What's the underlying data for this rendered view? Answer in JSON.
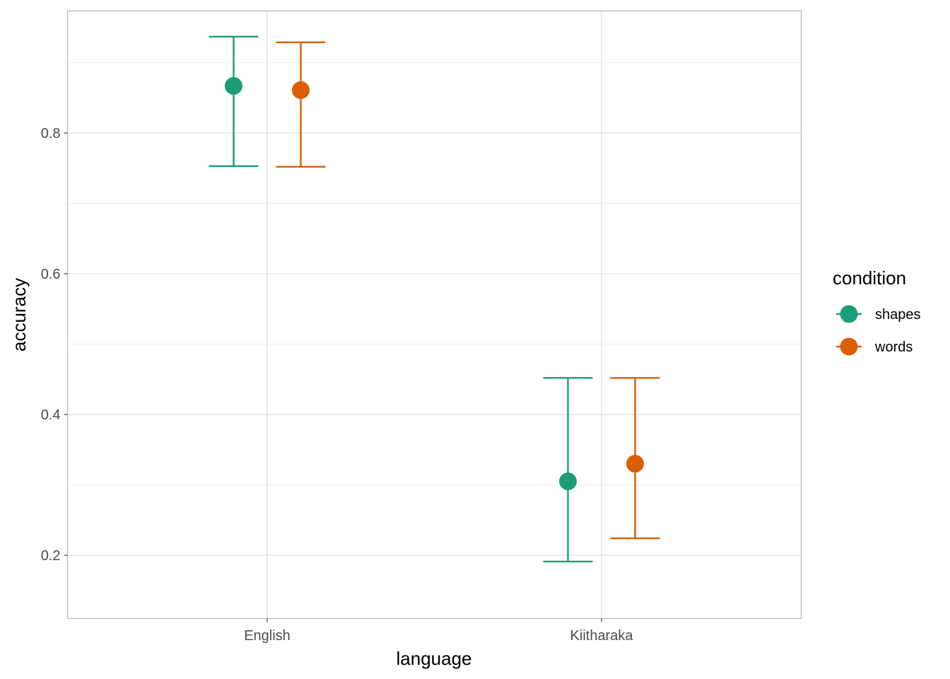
{
  "chart_data": {
    "type": "scatter",
    "xlabel": "language",
    "ylabel": "accuracy",
    "categories": [
      "English",
      "Kiitharaka"
    ],
    "yticks": [
      0.2,
      0.4,
      0.6,
      0.8
    ],
    "ytick_labels": [
      "0.2",
      "0.4",
      "0.6",
      "0.8"
    ],
    "ylim": [
      0.11,
      0.9735
    ],
    "grid": true,
    "legend": {
      "title": "condition",
      "position": "right"
    },
    "series": [
      {
        "name": "shapes",
        "color": "#1b9e77",
        "values": [
          0.867,
          0.305
        ],
        "lower": [
          0.753,
          0.191
        ],
        "upper": [
          0.937,
          0.452
        ]
      },
      {
        "name": "words",
        "color": "#d95f02",
        "values": [
          0.861,
          0.33
        ],
        "lower": [
          0.752,
          0.224
        ],
        "upper": [
          0.929,
          0.452
        ]
      }
    ]
  }
}
